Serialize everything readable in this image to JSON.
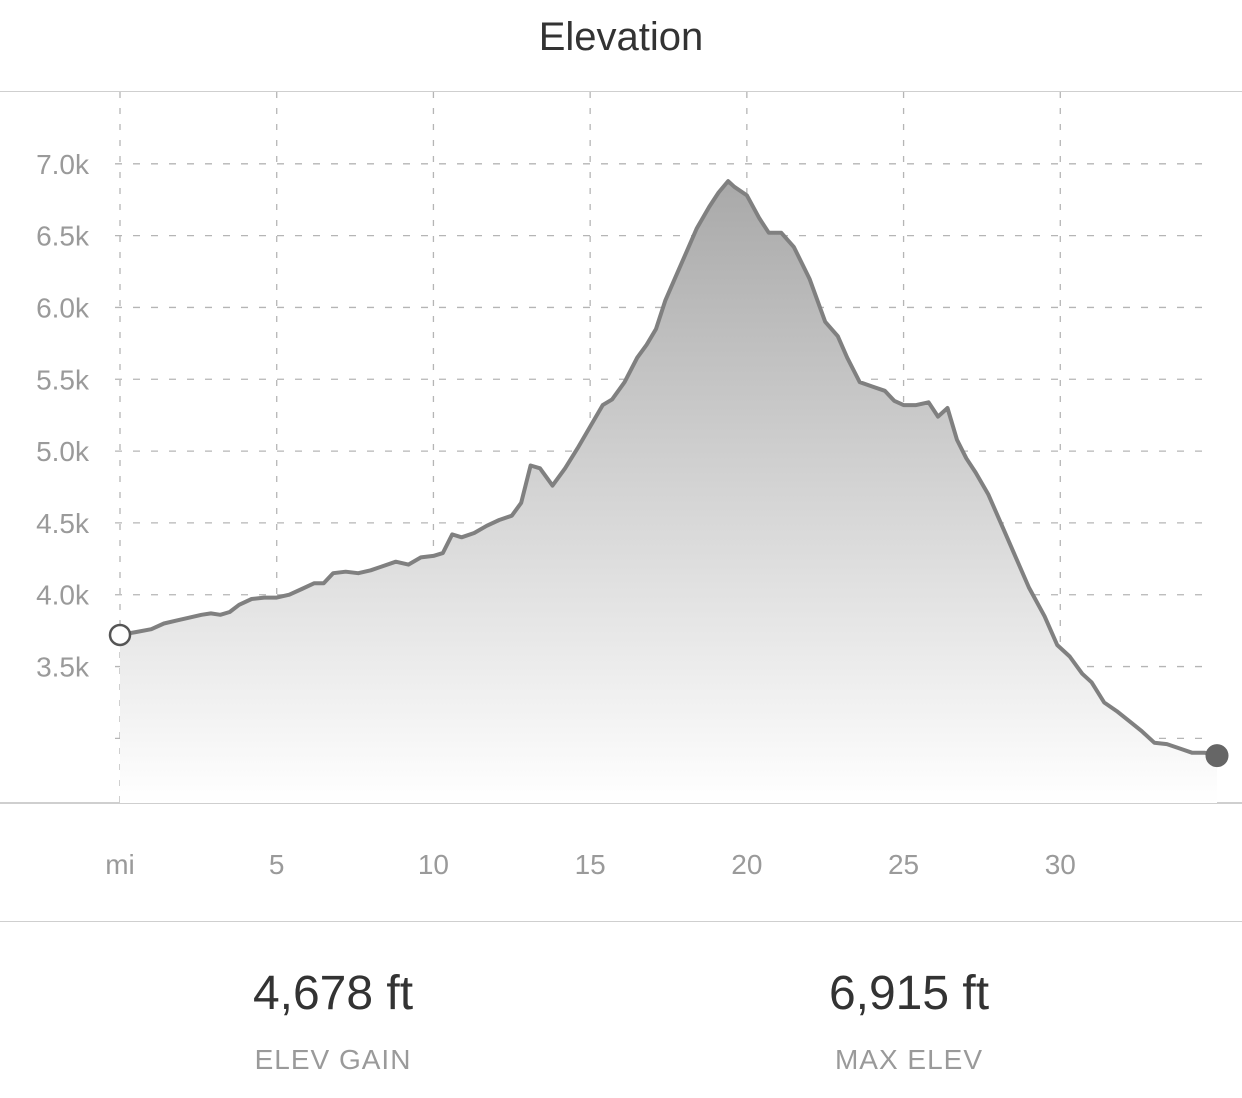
{
  "header": {
    "title": "Elevation"
  },
  "colors": {
    "line": "#808080",
    "grid": "#b5b5b5",
    "axis_text": "#9a9a9a",
    "fill_top": "#a9a9a9",
    "fill_bottom": "#ffffff",
    "end_marker": "#666666"
  },
  "chart_data": {
    "type": "area",
    "title": "Elevation",
    "xlabel": "mi",
    "ylabel": "",
    "xlim": [
      0,
      35
    ],
    "ylim": [
      2550,
      7500
    ],
    "grid": true,
    "x_ticks": [
      {
        "value": 0,
        "label": "mi"
      },
      {
        "value": 5,
        "label": "5"
      },
      {
        "value": 10,
        "label": "10"
      },
      {
        "value": 15,
        "label": "15"
      },
      {
        "value": 20,
        "label": "20"
      },
      {
        "value": 25,
        "label": "25"
      },
      {
        "value": 30,
        "label": "30"
      }
    ],
    "y_ticks": [
      {
        "value": 3000,
        "label": ""
      },
      {
        "value": 3500,
        "label": "3.5k"
      },
      {
        "value": 4000,
        "label": "4.0k"
      },
      {
        "value": 4500,
        "label": "4.5k"
      },
      {
        "value": 5000,
        "label": "5.0k"
      },
      {
        "value": 5500,
        "label": "5.5k"
      },
      {
        "value": 6000,
        "label": "6.0k"
      },
      {
        "value": 6500,
        "label": "6.5k"
      },
      {
        "value": 7000,
        "label": "7.0k"
      }
    ],
    "series": [
      {
        "x": [
          0,
          0.5,
          1.0,
          1.4,
          1.8,
          2.2,
          2.6,
          2.9,
          3.2,
          3.5,
          3.8,
          4.2,
          4.6,
          5.0,
          5.4,
          5.8,
          6.2,
          6.5,
          6.8,
          7.2,
          7.6,
          8.0,
          8.4,
          8.8,
          9.2,
          9.6,
          10.0,
          10.3,
          10.6,
          10.9,
          11.3,
          11.7,
          12.1,
          12.5,
          12.8,
          13.1,
          13.4,
          13.8,
          14.2,
          14.6,
          15.0,
          15.4,
          15.7,
          16.1,
          16.5,
          16.8,
          17.1,
          17.4,
          17.7,
          18.0,
          18.4,
          18.8,
          19.1,
          19.4,
          19.6,
          20.0,
          20.4,
          20.7,
          21.1,
          21.5,
          22.0,
          22.5,
          22.9,
          23.2,
          23.6,
          24.0,
          24.4,
          24.7,
          25.0,
          25.4,
          25.8,
          26.1,
          26.4,
          26.7,
          27.0,
          27.3,
          27.7,
          28.2,
          28.6,
          29.0,
          29.5,
          29.9,
          30.3,
          30.7,
          31.0,
          31.4,
          31.8,
          32.2,
          32.6,
          33.0,
          33.4,
          33.8,
          34.2,
          34.6,
          35.0
        ],
        "y": [
          3720,
          3740,
          3760,
          3800,
          3820,
          3840,
          3860,
          3870,
          3860,
          3880,
          3930,
          3970,
          3980,
          3980,
          4000,
          4040,
          4080,
          4080,
          4150,
          4160,
          4150,
          4170,
          4200,
          4230,
          4210,
          4260,
          4270,
          4290,
          4420,
          4400,
          4430,
          4480,
          4520,
          4550,
          4640,
          4900,
          4880,
          4760,
          4880,
          5020,
          5170,
          5320,
          5360,
          5480,
          5650,
          5740,
          5850,
          6050,
          6200,
          6350,
          6550,
          6700,
          6800,
          6880,
          6840,
          6780,
          6620,
          6520,
          6520,
          6420,
          6200,
          5900,
          5800,
          5650,
          5480,
          5450,
          5420,
          5350,
          5320,
          5320,
          5340,
          5240,
          5300,
          5080,
          4950,
          4850,
          4700,
          4450,
          4250,
          4050,
          3850,
          3650,
          3570,
          3450,
          3390,
          3250,
          3190,
          3120,
          3050,
          2970,
          2960,
          2930,
          2900,
          2900,
          2880
        ]
      }
    ],
    "start_marker": {
      "x": 0,
      "y": 3720
    },
    "end_marker": {
      "x": 35,
      "y": 2880
    }
  },
  "stats": [
    {
      "value": "4,678 ft",
      "label": "ELEV GAIN"
    },
    {
      "value": "6,915 ft",
      "label": "MAX ELEV"
    }
  ]
}
